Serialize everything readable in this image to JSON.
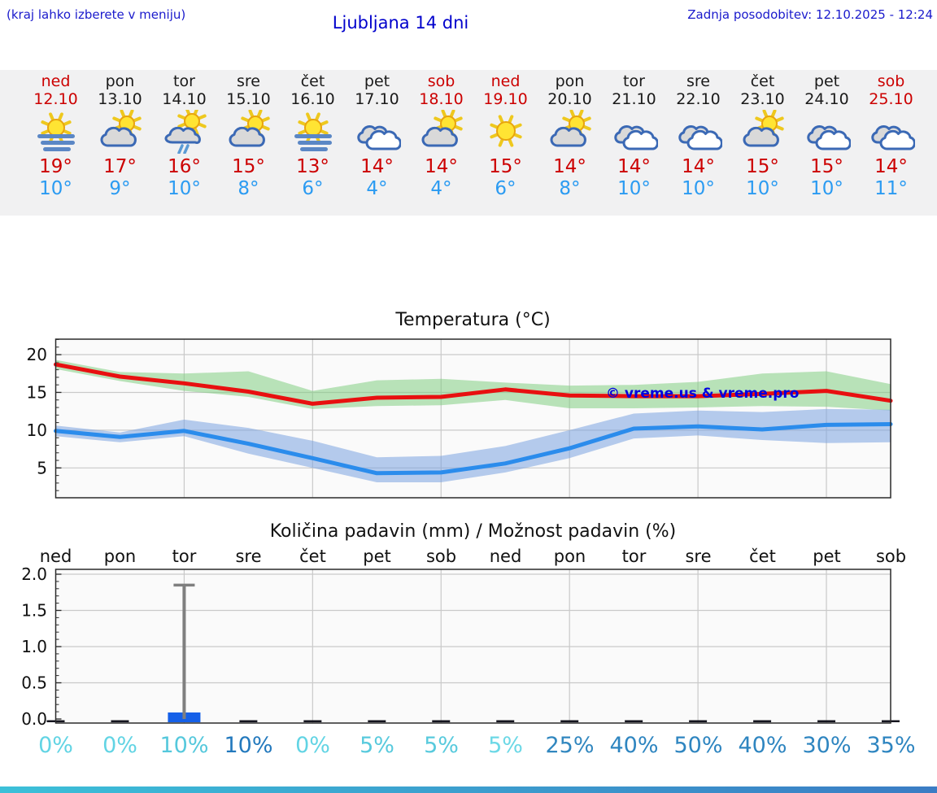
{
  "header": {
    "left_note": "(kraj lahko izberete v meniju)",
    "title": "Ljubljana 14 dni",
    "last_update": "Zadnja posodobitev: 12.10.2025 - 12:24"
  },
  "colors": {
    "header_blue": "#1a1acc",
    "title_blue": "#0000cc",
    "band_bg": "#f1f1f2",
    "plot_bg": "#fafafa",
    "grid": "#c9c9c9",
    "border": "#2b2b2b",
    "high_red": "#cc0000",
    "low_blue": "#2b9bf2",
    "max_line": "#e81010",
    "min_line": "#2b8cec",
    "max_band": "#82ce82",
    "min_band": "#7aa3e0",
    "bar_blue": "#1560e8",
    "whisker_gray": "#7f7f7f",
    "trace_dark": "#15151f",
    "watermark_blue": "#0000e0",
    "bottom_bar_left": "#3cc0d8",
    "bottom_bar_right": "#3b7cc4"
  },
  "forecast": {
    "days": [
      {
        "name": "ned",
        "date": "12.10",
        "name_color": "#cc0000",
        "date_color": "#cc0000",
        "icon": "sun-fog",
        "high": "19°",
        "low": "10°"
      },
      {
        "name": "pon",
        "date": "13.10",
        "name_color": "#1a1a1a",
        "date_color": "#1a1a1a",
        "icon": "sun-cloud",
        "high": "17°",
        "low": "9°"
      },
      {
        "name": "tor",
        "date": "14.10",
        "name_color": "#1a1a1a",
        "date_color": "#1a1a1a",
        "icon": "sun-cloud-rain",
        "high": "16°",
        "low": "10°"
      },
      {
        "name": "sre",
        "date": "15.10",
        "name_color": "#1a1a1a",
        "date_color": "#1a1a1a",
        "icon": "sun-cloud",
        "high": "15°",
        "low": "8°"
      },
      {
        "name": "čet",
        "date": "16.10",
        "name_color": "#1a1a1a",
        "date_color": "#1a1a1a",
        "icon": "sun-fog",
        "high": "13°",
        "low": "6°"
      },
      {
        "name": "pet",
        "date": "17.10",
        "name_color": "#1a1a1a",
        "date_color": "#1a1a1a",
        "icon": "clouds",
        "high": "14°",
        "low": "4°"
      },
      {
        "name": "sob",
        "date": "18.10",
        "name_color": "#cc0000",
        "date_color": "#cc0000",
        "icon": "sun-cloud",
        "high": "14°",
        "low": "4°"
      },
      {
        "name": "ned",
        "date": "19.10",
        "name_color": "#cc0000",
        "date_color": "#cc0000",
        "icon": "sun",
        "high": "15°",
        "low": "6°"
      },
      {
        "name": "pon",
        "date": "20.10",
        "name_color": "#1a1a1a",
        "date_color": "#1a1a1a",
        "icon": "sun-cloud",
        "high": "14°",
        "low": "8°"
      },
      {
        "name": "tor",
        "date": "21.10",
        "name_color": "#1a1a1a",
        "date_color": "#1a1a1a",
        "icon": "clouds",
        "high": "14°",
        "low": "10°"
      },
      {
        "name": "sre",
        "date": "22.10",
        "name_color": "#1a1a1a",
        "date_color": "#1a1a1a",
        "icon": "clouds",
        "high": "14°",
        "low": "10°"
      },
      {
        "name": "čet",
        "date": "23.10",
        "name_color": "#1a1a1a",
        "date_color": "#1a1a1a",
        "icon": "sun-cloud",
        "high": "15°",
        "low": "10°"
      },
      {
        "name": "pet",
        "date": "24.10",
        "name_color": "#1a1a1a",
        "date_color": "#1a1a1a",
        "icon": "clouds",
        "high": "15°",
        "low": "10°"
      },
      {
        "name": "sob",
        "date": "25.10",
        "name_color": "#cc0000",
        "date_color": "#cc0000",
        "icon": "clouds",
        "high": "14°",
        "low": "11°"
      }
    ]
  },
  "chart_data": [
    {
      "type": "line",
      "title": "Temperatura (°C)",
      "watermark": "© vreme.us & vreme.pro",
      "x_categories": [
        "ned",
        "pon",
        "tor",
        "sre",
        "čet",
        "pet",
        "sob",
        "ned",
        "pon",
        "tor",
        "sre",
        "čet",
        "pet",
        "sob"
      ],
      "x_gridline_days": [
        2,
        4,
        6,
        8,
        10,
        12
      ],
      "ylim": [
        1.05,
        22.05
      ],
      "yticks": [
        20,
        15,
        10,
        5
      ],
      "minor_tick_step": 1,
      "series": [
        {
          "name": "max-temp",
          "values": [
            18.7,
            17.1,
            16.2,
            15.1,
            13.5,
            14.3,
            14.4,
            15.4,
            14.6,
            14.5,
            14.5,
            14.8,
            15.2,
            13.9
          ]
        },
        {
          "name": "max-range-upper",
          "values": [
            19.3,
            17.7,
            17.5,
            17.8,
            15.2,
            16.6,
            16.8,
            16.3,
            15.9,
            16.0,
            16.4,
            17.5,
            17.8,
            16.1
          ]
        },
        {
          "name": "max-range-lower",
          "values": [
            18.1,
            16.5,
            15.2,
            14.4,
            12.8,
            13.2,
            13.3,
            14.0,
            12.9,
            12.9,
            13.0,
            13.2,
            13.1,
            12.6
          ]
        },
        {
          "name": "min-temp",
          "values": [
            9.9,
            9.1,
            9.9,
            8.2,
            6.3,
            4.3,
            4.4,
            5.6,
            7.6,
            10.2,
            10.5,
            10.1,
            10.7,
            10.8
          ]
        },
        {
          "name": "min-range-upper",
          "values": [
            10.6,
            9.7,
            11.4,
            10.3,
            8.6,
            6.4,
            6.6,
            7.9,
            10.0,
            12.2,
            12.6,
            12.4,
            12.8,
            12.7
          ]
        },
        {
          "name": "min-range-lower",
          "values": [
            9.2,
            8.4,
            9.2,
            6.9,
            5.0,
            3.1,
            3.1,
            4.4,
            6.3,
            8.9,
            9.3,
            8.7,
            8.3,
            8.4
          ]
        }
      ]
    },
    {
      "type": "bar",
      "title": "Količina padavin (mm) / Možnost padavin (%)",
      "x_categories": [
        "ned",
        "pon",
        "tor",
        "sre",
        "čet",
        "pet",
        "sob",
        "ned",
        "pon",
        "tor",
        "sre",
        "čet",
        "pet",
        "sob"
      ],
      "x_gridline_days": [
        2,
        4,
        6,
        8,
        10,
        12
      ],
      "ylim": [
        0,
        2.0
      ],
      "yticks": [
        "2.0",
        "1.5",
        "1.0",
        "0.5",
        "0.0"
      ],
      "minor_tick_step": 0.1,
      "values": [
        0,
        0,
        0.09,
        0,
        0,
        0,
        0,
        0,
        0,
        0,
        0,
        0,
        0,
        0
      ],
      "whisker_max": [
        null,
        null,
        1.85,
        null,
        null,
        null,
        null,
        null,
        null,
        null,
        null,
        null,
        null,
        null
      ],
      "probabilities": [
        {
          "label": "0%",
          "color": "#62d4e4"
        },
        {
          "label": "0%",
          "color": "#62d4e4"
        },
        {
          "label": "10%",
          "color": "#55c8dc"
        },
        {
          "label": "10%",
          "color": "#2379bd"
        },
        {
          "label": "0%",
          "color": "#62d4e4"
        },
        {
          "label": "5%",
          "color": "#58cadd"
        },
        {
          "label": "5%",
          "color": "#58cadd"
        },
        {
          "label": "5%",
          "color": "#6cd8e6"
        },
        {
          "label": "25%",
          "color": "#3187bf"
        },
        {
          "label": "40%",
          "color": "#2e85c0"
        },
        {
          "label": "50%",
          "color": "#2e85c0"
        },
        {
          "label": "40%",
          "color": "#2e85c0"
        },
        {
          "label": "30%",
          "color": "#2e85c0"
        },
        {
          "label": "35%",
          "color": "#2e85c0"
        }
      ]
    }
  ]
}
